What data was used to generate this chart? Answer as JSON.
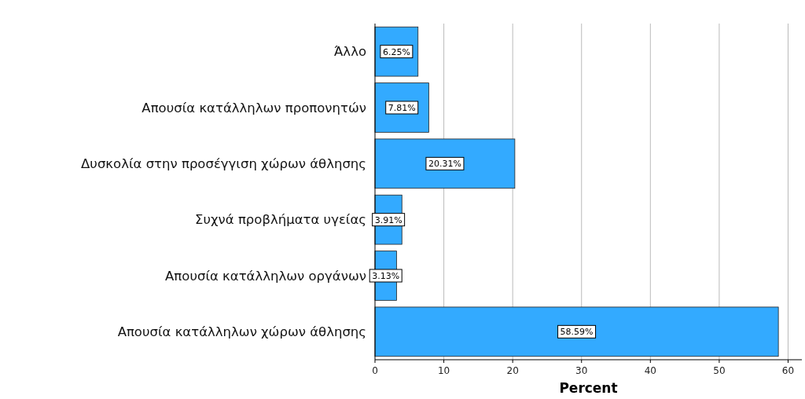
{
  "chart_data": {
    "type": "bar",
    "orientation": "horizontal",
    "categories": [
      "Άλλο",
      "Απουσία κατάλληλων προπονητών",
      "Δυσκολία στην προσέγγιση χώρων άθλησης",
      "Συχνά προβλήματα υγείας",
      "Απουσία κατάλληλων οργάνων",
      "Απουσία κατάλληλων χώρων άθλησης"
    ],
    "values": [
      6.25,
      7.81,
      20.31,
      3.91,
      3.13,
      58.59
    ],
    "value_labels": [
      "6.25%",
      "7.81%",
      "20.31%",
      "3.91%",
      "3.13%",
      "58.59%"
    ],
    "color": "#33aaff",
    "xlabel": "Percent",
    "xlim": [
      0,
      62
    ],
    "xticks": [
      0,
      10,
      20,
      30,
      40,
      50,
      60
    ],
    "grid": "x"
  }
}
